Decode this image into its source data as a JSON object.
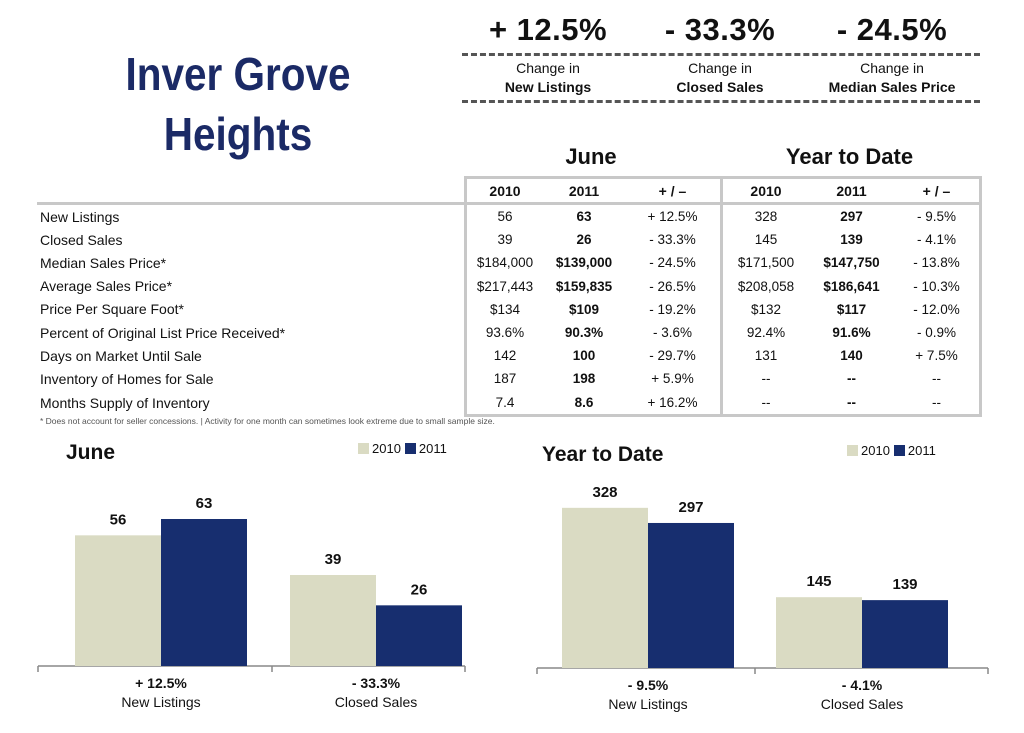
{
  "title_line1": "Inver Grove",
  "title_line2": "Heights",
  "kpis": [
    {
      "value": "+ 12.5%",
      "line1": "Change in",
      "line2": "New Listings"
    },
    {
      "value": "- 33.3%",
      "line1": "Change in",
      "line2": "Closed Sales"
    },
    {
      "value": "- 24.5%",
      "line1": "Change in",
      "line2": "Median Sales Price"
    }
  ],
  "table": {
    "group_june": "June",
    "group_ytd": "Year to Date",
    "headers": [
      "2010",
      "2011",
      "+ / –",
      "2010",
      "2011",
      "+ / –"
    ],
    "rows": [
      {
        "label": "New Listings",
        "c": [
          "56",
          "63",
          "+ 12.5%",
          "328",
          "297",
          "- 9.5%"
        ]
      },
      {
        "label": "Closed Sales",
        "c": [
          "39",
          "26",
          "- 33.3%",
          "145",
          "139",
          "- 4.1%"
        ]
      },
      {
        "label": "Median Sales Price*",
        "c": [
          "$184,000",
          "$139,000",
          "- 24.5%",
          "$171,500",
          "$147,750",
          "- 13.8%"
        ]
      },
      {
        "label": "Average Sales Price*",
        "c": [
          "$217,443",
          "$159,835",
          "- 26.5%",
          "$208,058",
          "$186,641",
          "- 10.3%"
        ]
      },
      {
        "label": "Price Per Square Foot*",
        "c": [
          "$134",
          "$109",
          "- 19.2%",
          "$132",
          "$117",
          "- 12.0%"
        ]
      },
      {
        "label": "Percent of Original List Price Received*",
        "c": [
          "93.6%",
          "90.3%",
          "- 3.6%",
          "92.4%",
          "91.6%",
          "- 0.9%"
        ]
      },
      {
        "label": "Days on Market Until Sale",
        "c": [
          "142",
          "100",
          "- 29.7%",
          "131",
          "140",
          "+ 7.5%"
        ]
      },
      {
        "label": "Inventory of Homes for Sale",
        "c": [
          "187",
          "198",
          "+ 5.9%",
          "--",
          "--",
          "--"
        ]
      },
      {
        "label": "Months Supply of Inventory",
        "c": [
          "7.4",
          "8.6",
          "+ 16.2%",
          "--",
          "--",
          "--"
        ]
      }
    ]
  },
  "footnote": "* Does not account for seller concessions.  |  Activity for one month can sometimes look extreme due to small sample size.",
  "colors": {
    "y2010": "#dadbc3",
    "y2011": "#172e6f",
    "title": "#1b2a66"
  },
  "chart_data": [
    {
      "type": "bar",
      "title": "June",
      "legend": [
        "2010",
        "2011"
      ],
      "categories": [
        "New Listings",
        "Closed Sales"
      ],
      "change_labels": [
        "+ 12.5%",
        "- 33.3%"
      ],
      "series": [
        {
          "name": "2010",
          "values": [
            56,
            39
          ]
        },
        {
          "name": "2011",
          "values": [
            63,
            26
          ]
        }
      ],
      "ylim": [
        0,
        75
      ]
    },
    {
      "type": "bar",
      "title": "Year to Date",
      "legend": [
        "2010",
        "2011"
      ],
      "categories": [
        "New Listings",
        "Closed Sales"
      ],
      "change_labels": [
        "- 9.5%",
        "- 4.1%"
      ],
      "series": [
        {
          "name": "2010",
          "values": [
            328,
            145
          ]
        },
        {
          "name": "2011",
          "values": [
            297,
            139
          ]
        }
      ],
      "ylim": [
        0,
        385
      ]
    }
  ]
}
